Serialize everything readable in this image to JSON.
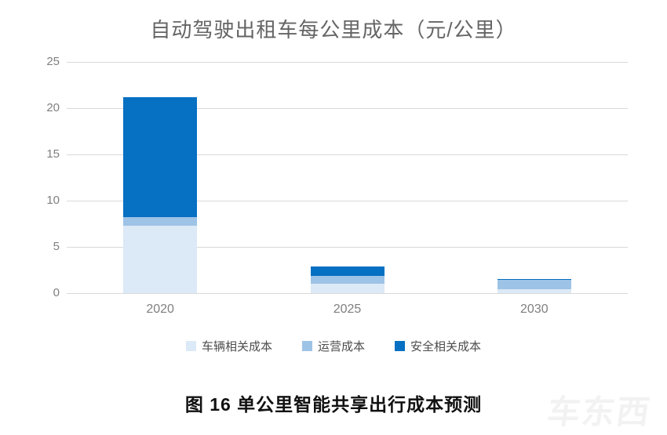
{
  "chart_data": {
    "type": "bar",
    "stacked": true,
    "title": "自动驾驶出租车每公里成本（元/公里）",
    "categories": [
      "2020",
      "2025",
      "2030"
    ],
    "series": [
      {
        "name": "车辆相关成本",
        "color": "#dce9f6",
        "values": [
          7.3,
          1.0,
          0.4
        ]
      },
      {
        "name": "运营成本",
        "color": "#9dc3e6",
        "values": [
          0.9,
          0.9,
          1.0
        ]
      },
      {
        "name": "安全相关成本",
        "color": "#0670c2",
        "values": [
          13.0,
          1.0,
          0.1
        ]
      }
    ],
    "totals": [
      21.2,
      2.9,
      1.5
    ],
    "ylim": [
      0,
      25
    ],
    "yticks": [
      0,
      5,
      10,
      15,
      20,
      25
    ],
    "xlabel": "",
    "ylabel": "",
    "grid": true,
    "legend_position": "bottom",
    "gridline_color": "#d9d9d9",
    "axis_text_color": "#7f7f7f"
  },
  "caption": "图 16 单公里智能共享出行成本预测",
  "watermark": "车东西"
}
